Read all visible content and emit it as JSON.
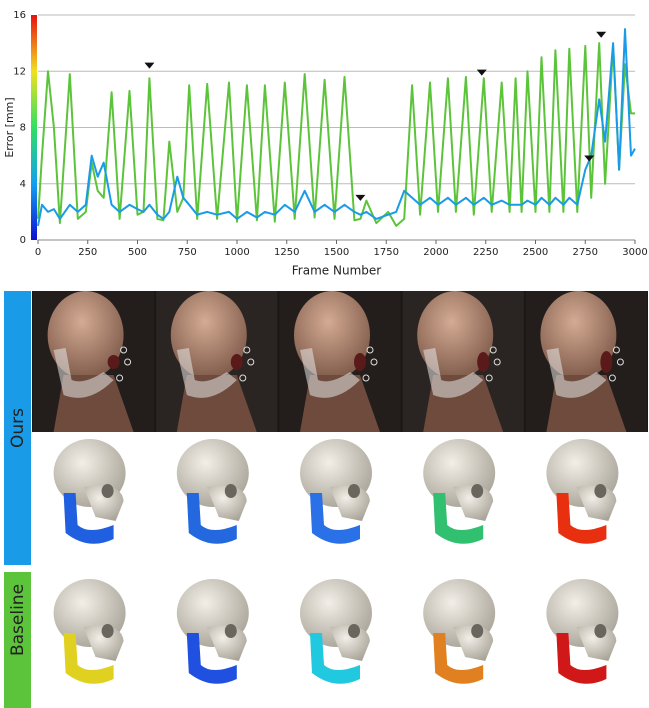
{
  "chart_data": {
    "type": "line",
    "xlabel": "Frame Number",
    "ylabel": "Error [mm]",
    "xlim": [
      0,
      3000
    ],
    "ylim": [
      0,
      16
    ],
    "xticks": [
      0,
      250,
      500,
      750,
      1000,
      1250,
      1500,
      1750,
      2000,
      2250,
      2500,
      2750,
      3000
    ],
    "yticks": [
      0,
      4,
      8,
      12,
      16
    ],
    "grid": true,
    "x": [
      0,
      20,
      50,
      80,
      110,
      160,
      200,
      240,
      270,
      300,
      330,
      370,
      410,
      460,
      500,
      530,
      560,
      600,
      630,
      660,
      700,
      730,
      760,
      800,
      850,
      900,
      960,
      1000,
      1050,
      1100,
      1140,
      1190,
      1240,
      1290,
      1340,
      1390,
      1440,
      1490,
      1540,
      1590,
      1620,
      1650,
      1700,
      1760,
      1800,
      1840,
      1880,
      1920,
      1970,
      2010,
      2060,
      2100,
      2150,
      2190,
      2240,
      2280,
      2330,
      2370,
      2400,
      2430,
      2460,
      2500,
      2530,
      2570,
      2600,
      2640,
      2670,
      2710,
      2750,
      2780,
      2820,
      2850,
      2890,
      2920,
      2950,
      2980,
      3000
    ],
    "series": [
      {
        "name": "Baseline",
        "color": "#5cc43a",
        "values": [
          1.5,
          6,
          12,
          8,
          1.2,
          11.8,
          1.5,
          2,
          5.5,
          3.5,
          3,
          10.5,
          1.5,
          10.6,
          1.8,
          2,
          11.5,
          1.5,
          1.4,
          7,
          2,
          3,
          11,
          1.5,
          11.1,
          1.5,
          11.2,
          1.3,
          11,
          1.4,
          11,
          1.3,
          11.2,
          1.5,
          11.8,
          1.6,
          11.4,
          1.5,
          11.6,
          1.4,
          1.5,
          2.8,
          1.2,
          2,
          1,
          1.5,
          11,
          1.8,
          11.2,
          2,
          11.5,
          2,
          11.6,
          1.8,
          11.5,
          2,
          11.2,
          2,
          11.5,
          2,
          12,
          2,
          13,
          2,
          13.5,
          2,
          13.6,
          2,
          13.8,
          3,
          14,
          4,
          13.8,
          5,
          12.5,
          9,
          9
        ]
      },
      {
        "name": "Ours",
        "color": "#1a9be8",
        "values": [
          1,
          2.5,
          2,
          2.2,
          1.5,
          2.5,
          2,
          2.5,
          6,
          4.5,
          5.5,
          2.5,
          2,
          2.5,
          2.2,
          2,
          2.5,
          1.8,
          1.5,
          2,
          4.5,
          3,
          2.5,
          1.8,
          2,
          1.8,
          2,
          1.5,
          2,
          1.6,
          2,
          1.8,
          2.5,
          2,
          3.5,
          2,
          2.5,
          2,
          2.5,
          2,
          1.8,
          2,
          1.5,
          1.8,
          2,
          3.5,
          3,
          2.5,
          3,
          2.5,
          3,
          2.5,
          3,
          2.5,
          3,
          2.5,
          2.8,
          2.5,
          2.5,
          2.5,
          2.8,
          2.5,
          3,
          2.5,
          3,
          2.5,
          3,
          2.5,
          5,
          6,
          10,
          7,
          14,
          5,
          15,
          6,
          6.5
        ]
      }
    ],
    "markers": {
      "x": [
        560,
        1620,
        2230,
        2770,
        2830
      ],
      "y": [
        12.4,
        3,
        11.9,
        5.8,
        14.6
      ]
    }
  }
}
